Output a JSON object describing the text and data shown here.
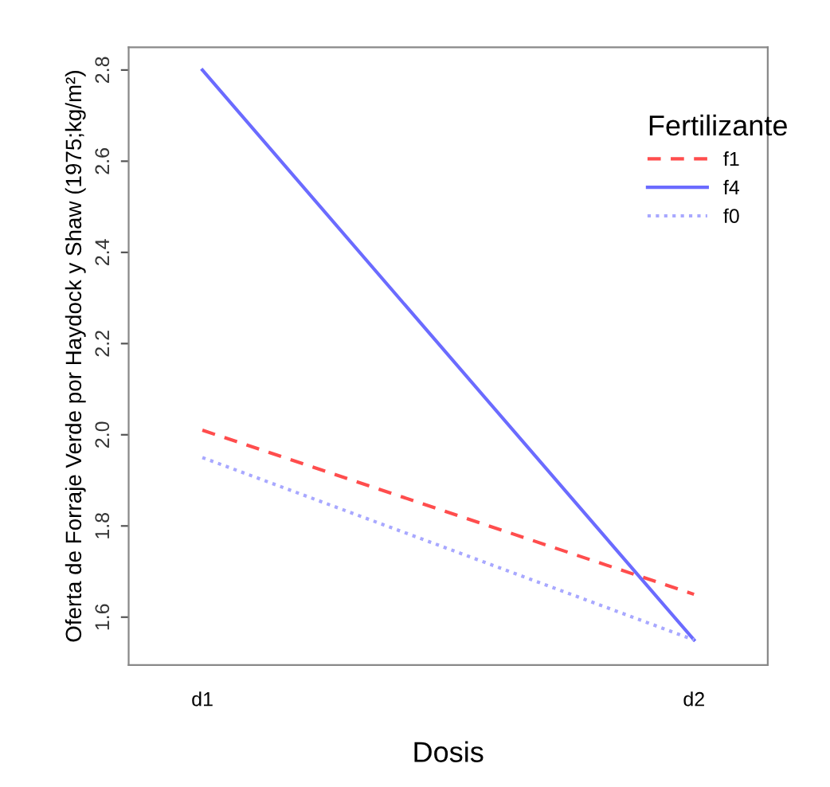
{
  "chart_data": {
    "type": "line",
    "xlabel": "Dosis",
    "ylabel": "Oferta de Forraje Verde por Haydock y Shaw (1975;kg/m²)",
    "legend_title": "Fertilizante",
    "legend": "top right",
    "grid": false,
    "marker": "none",
    "categories": [
      "d1",
      "d2"
    ],
    "ylim": [
      1.495,
      2.85
    ],
    "yticks": [
      1.6,
      1.8,
      {
        "value": 2.0,
        "label": "2.0"
      },
      2.2,
      2.4,
      2.6,
      2.8
    ],
    "series": [
      {
        "name": "f1",
        "color": "#ff4d4d",
        "line_style": "dashed",
        "values": [
          2.01,
          1.65
        ]
      },
      {
        "name": "f4",
        "color": "#6b6bff",
        "line_style": "solid",
        "values": [
          2.8,
          1.55
        ]
      },
      {
        "name": "f0",
        "color": "#a8a8ff",
        "line_style": "dotted",
        "values": [
          1.95,
          1.55
        ]
      }
    ]
  }
}
